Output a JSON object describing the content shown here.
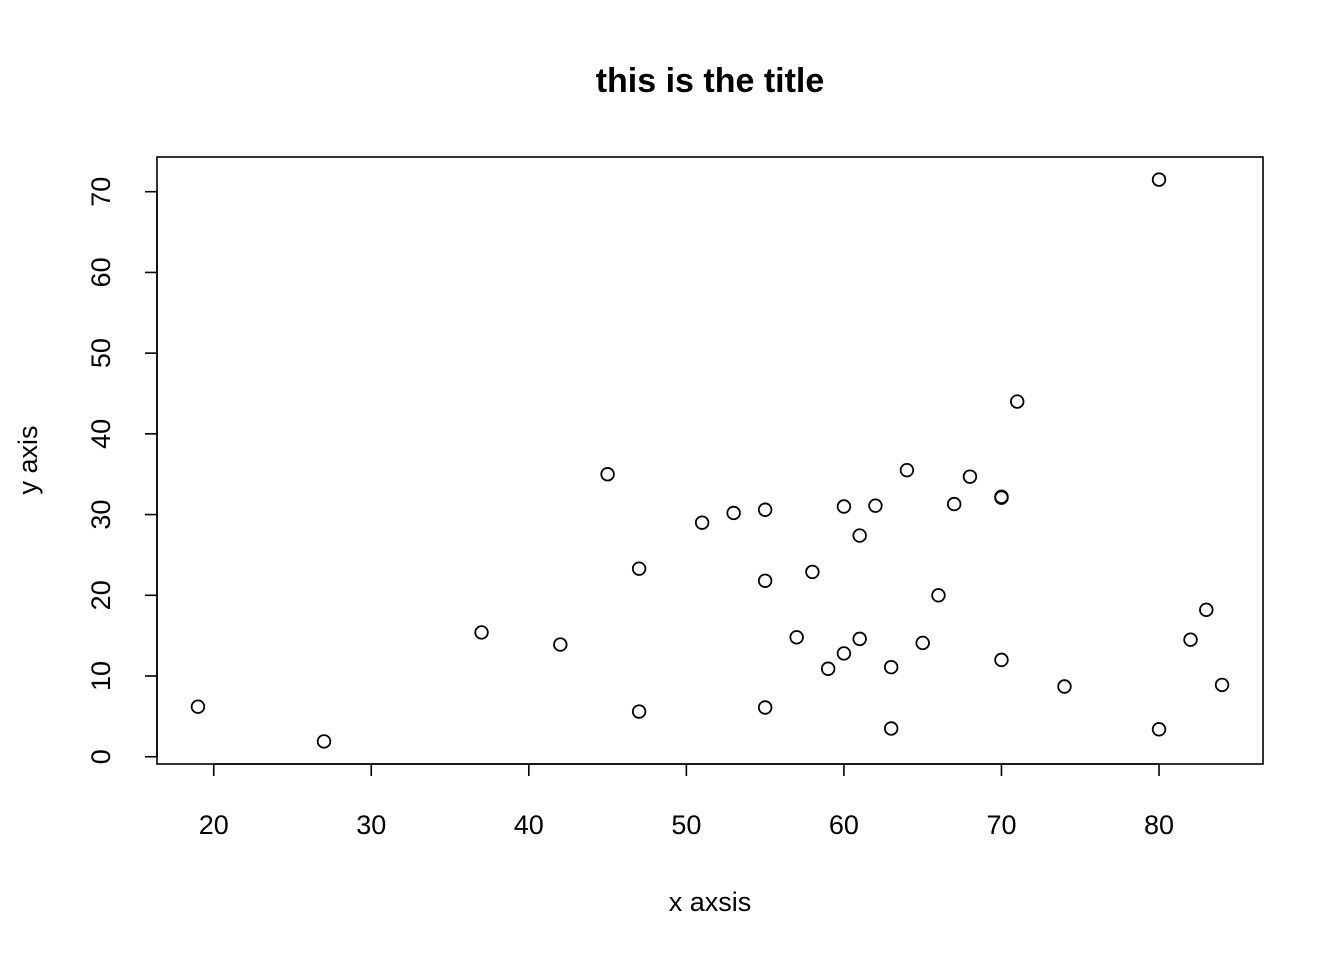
{
  "chart_data": {
    "type": "scatter",
    "title": "this is the title",
    "xlabel": "x axsis",
    "ylabel": "y axis",
    "xlim": [
      16.4,
      86.6
    ],
    "ylim": [
      -0.9,
      74.3
    ],
    "xticks": [
      20,
      30,
      40,
      50,
      60,
      70,
      80
    ],
    "yticks": [
      0,
      10,
      20,
      30,
      40,
      50,
      60,
      70
    ],
    "grid": false,
    "legend": "none",
    "points": [
      {
        "x": 19,
        "y": 6.2
      },
      {
        "x": 27,
        "y": 1.9
      },
      {
        "x": 37,
        "y": 15.4
      },
      {
        "x": 42,
        "y": 13.9
      },
      {
        "x": 45,
        "y": 35.0
      },
      {
        "x": 47,
        "y": 23.3
      },
      {
        "x": 47,
        "y": 5.6
      },
      {
        "x": 51,
        "y": 29.0
      },
      {
        "x": 53,
        "y": 30.2
      },
      {
        "x": 55,
        "y": 30.6
      },
      {
        "x": 55,
        "y": 21.8
      },
      {
        "x": 55,
        "y": 6.1
      },
      {
        "x": 57,
        "y": 14.8
      },
      {
        "x": 58,
        "y": 22.9
      },
      {
        "x": 59,
        "y": 10.9
      },
      {
        "x": 60,
        "y": 31.0
      },
      {
        "x": 60,
        "y": 12.8
      },
      {
        "x": 61,
        "y": 27.4
      },
      {
        "x": 61,
        "y": 14.6
      },
      {
        "x": 62,
        "y": 31.1
      },
      {
        "x": 63,
        "y": 11.1
      },
      {
        "x": 63,
        "y": 3.5
      },
      {
        "x": 64,
        "y": 35.5
      },
      {
        "x": 65,
        "y": 14.1
      },
      {
        "x": 66,
        "y": 20.0
      },
      {
        "x": 67,
        "y": 31.3
      },
      {
        "x": 68,
        "y": 34.7
      },
      {
        "x": 70,
        "y": 32.1
      },
      {
        "x": 70,
        "y": 32.2
      },
      {
        "x": 70,
        "y": 12.0
      },
      {
        "x": 71,
        "y": 44.0
      },
      {
        "x": 74,
        "y": 8.7
      },
      {
        "x": 80,
        "y": 71.5
      },
      {
        "x": 80,
        "y": 3.4
      },
      {
        "x": 82,
        "y": 14.5
      },
      {
        "x": 83,
        "y": 18.2
      },
      {
        "x": 84,
        "y": 8.9
      }
    ]
  }
}
